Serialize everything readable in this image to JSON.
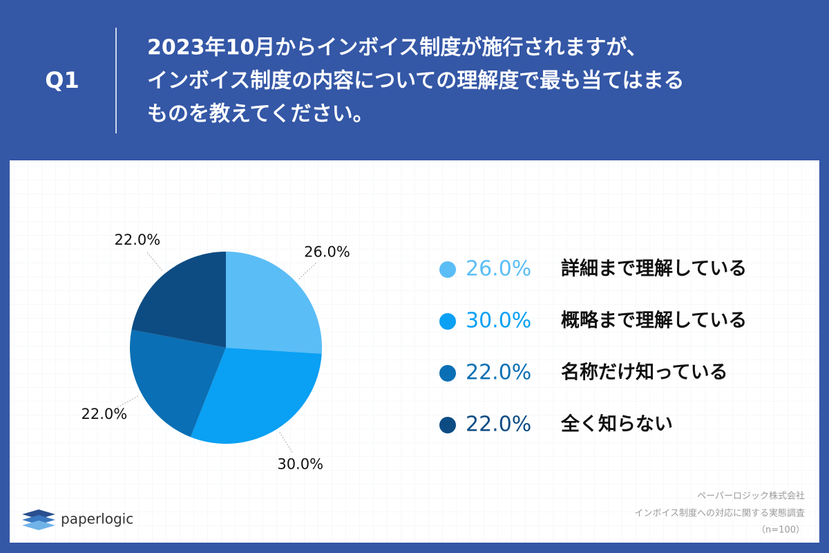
{
  "header": {
    "number": "Q1",
    "question": [
      "2023年10月からインボイス制度が施行されますが、",
      "インボイス制度の内容についての理解度で最も当てはまる",
      "ものを教えてください。"
    ]
  },
  "chart_data": {
    "type": "pie",
    "categories": [
      "詳細まで理解している",
      "概略まで理解している",
      "名称だけ知っている",
      "全く知らない"
    ],
    "values": [
      26.0,
      30.0,
      22.0,
      22.0
    ],
    "value_labels": [
      "26.0%",
      "30.0%",
      "22.0%",
      "22.0%"
    ],
    "colors": [
      "#5bbdf6",
      "#0aa0f3",
      "#0a6fb4",
      "#0d4c83"
    ]
  },
  "footer": {
    "company": "ペーパーロジック株式会社",
    "survey": "インボイス制度への対応に関する実態調査",
    "sample": "（n=100）",
    "logo": "paperlogic"
  }
}
